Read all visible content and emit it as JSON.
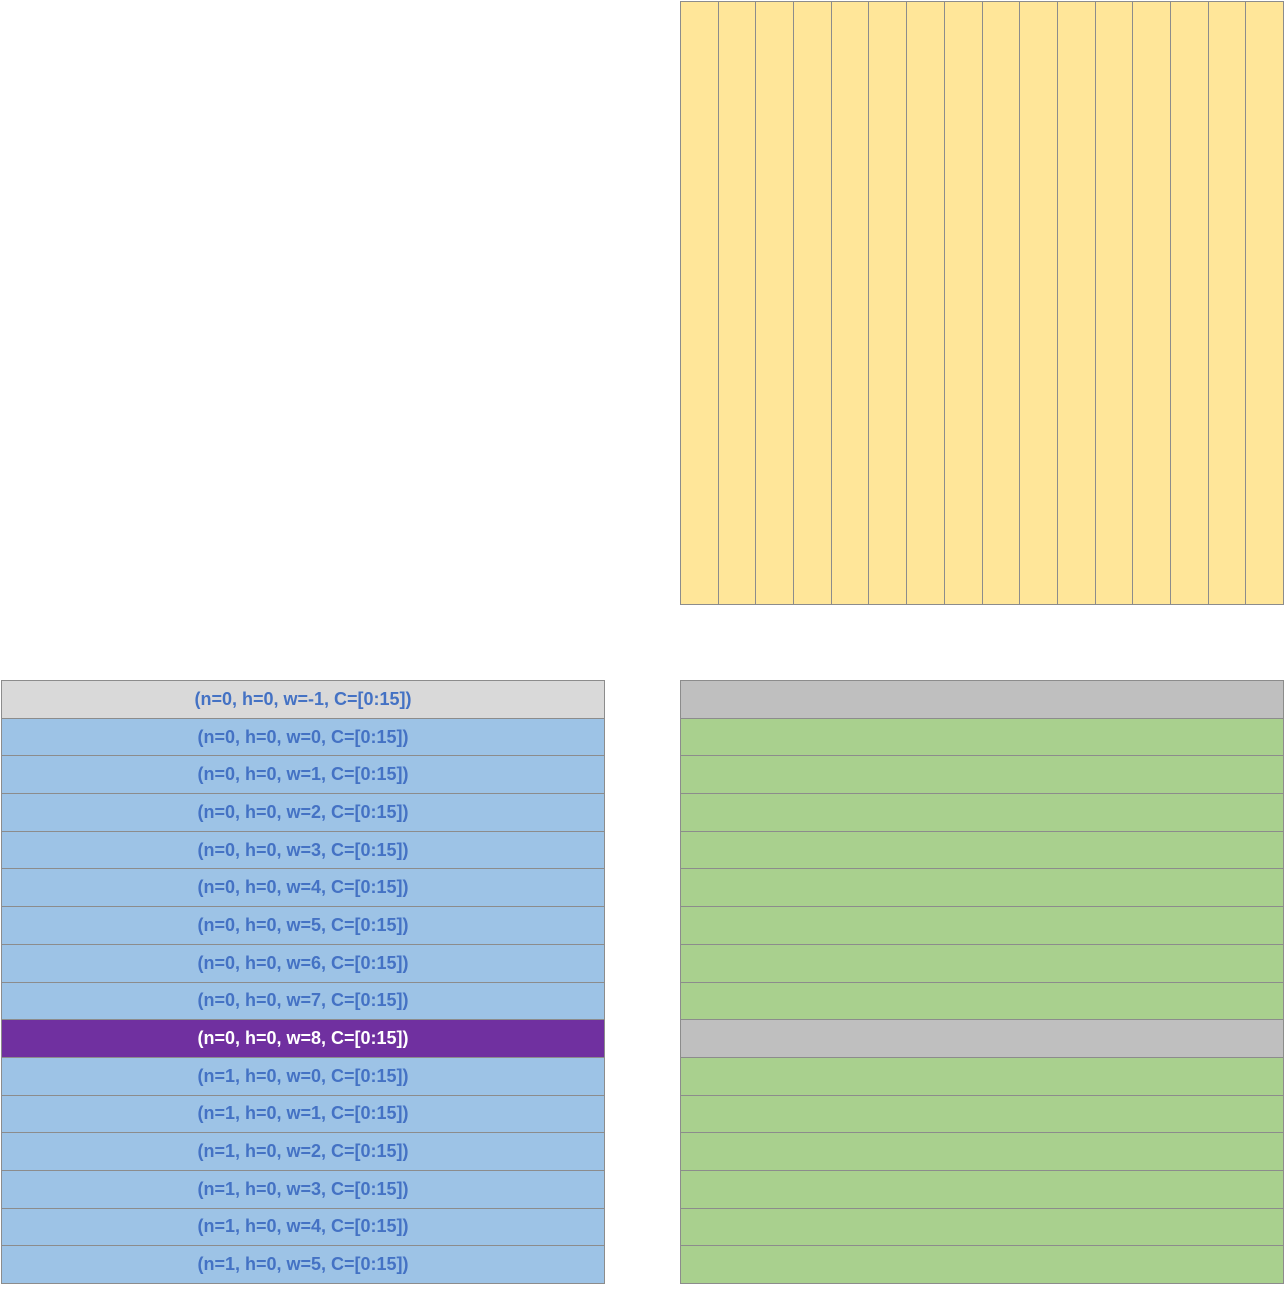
{
  "colors": {
    "column_fill": "#ffe699",
    "row_padding_fill": "#d9d9d9",
    "row_fill": "#9dc3e6",
    "row_highlight_fill": "#7030a0",
    "row_text": "#4472c4",
    "row_highlight_text": "#ffffff",
    "strip_fill": "#a9d08e",
    "strip_padding_fill": "#bfbfbf",
    "border": "#8c8c8c"
  },
  "columns": {
    "count": 16
  },
  "rows": [
    {
      "label": "(n=0, h=0, w=-1, C=[0:15])",
      "kind": "padding"
    },
    {
      "label": "(n=0, h=0, w=0, C=[0:15])",
      "kind": "normal"
    },
    {
      "label": "(n=0, h=0, w=1, C=[0:15])",
      "kind": "normal"
    },
    {
      "label": "(n=0, h=0, w=2, C=[0:15])",
      "kind": "normal"
    },
    {
      "label": "(n=0, h=0, w=3, C=[0:15])",
      "kind": "normal"
    },
    {
      "label": "(n=0, h=0, w=4, C=[0:15])",
      "kind": "normal"
    },
    {
      "label": "(n=0, h=0, w=5, C=[0:15])",
      "kind": "normal"
    },
    {
      "label": "(n=0, h=0, w=6, C=[0:15])",
      "kind": "normal"
    },
    {
      "label": "(n=0, h=0, w=7, C=[0:15])",
      "kind": "normal"
    },
    {
      "label": "(n=0, h=0, w=8, C=[0:15])",
      "kind": "highlight"
    },
    {
      "label": "(n=1, h=0, w=0, C=[0:15])",
      "kind": "normal"
    },
    {
      "label": "(n=1, h=0, w=1, C=[0:15])",
      "kind": "normal"
    },
    {
      "label": "(n=1, h=0, w=2, C=[0:15])",
      "kind": "normal"
    },
    {
      "label": "(n=1, h=0, w=3, C=[0:15])",
      "kind": "normal"
    },
    {
      "label": "(n=1, h=0, w=4, C=[0:15])",
      "kind": "normal"
    },
    {
      "label": "(n=1, h=0, w=5, C=[0:15])",
      "kind": "normal"
    }
  ],
  "strips": [
    {
      "kind": "padding"
    },
    {
      "kind": "normal"
    },
    {
      "kind": "normal"
    },
    {
      "kind": "normal"
    },
    {
      "kind": "normal"
    },
    {
      "kind": "normal"
    },
    {
      "kind": "normal"
    },
    {
      "kind": "normal"
    },
    {
      "kind": "normal"
    },
    {
      "kind": "padding"
    },
    {
      "kind": "normal"
    },
    {
      "kind": "normal"
    },
    {
      "kind": "normal"
    },
    {
      "kind": "normal"
    },
    {
      "kind": "normal"
    },
    {
      "kind": "normal"
    }
  ]
}
